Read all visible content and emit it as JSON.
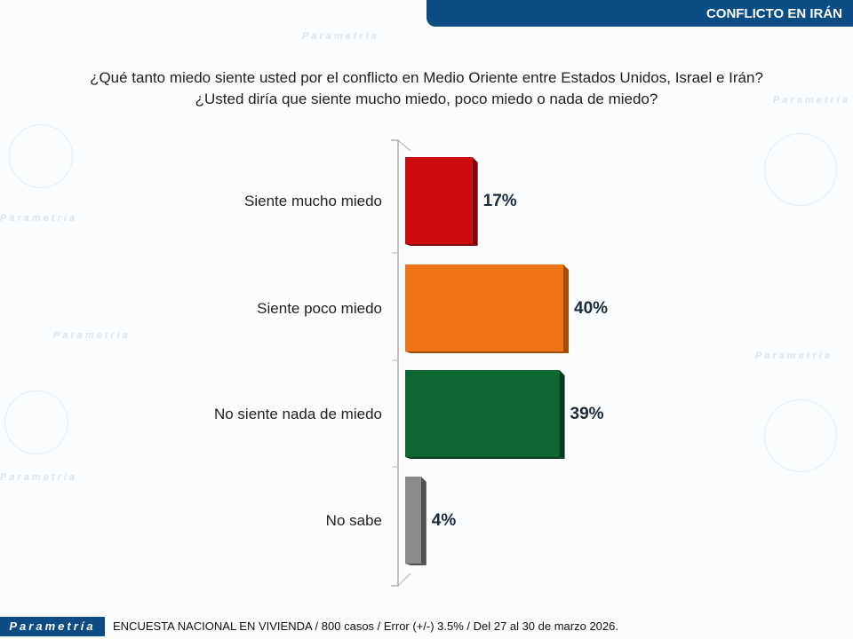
{
  "header": {
    "title": "CONFLICTO EN IRÁN"
  },
  "question": {
    "line1": "¿Qué tanto miedo siente usted por el conflicto en Medio Oriente entre Estados Unidos, Israel e Irán?",
    "line2": "¿Usted diría que siente mucho miedo, poco miedo o nada de miedo?"
  },
  "footer": {
    "logo": "Parametría",
    "note": "ENCUESTA NACIONAL EN VIVIENDA / 800 casos / Error (+/-) 3.5% / Del 27 al 30 de marzo 2026."
  },
  "chart_data": {
    "type": "bar",
    "orientation": "horizontal",
    "categories": [
      "Siente mucho miedo",
      "Siente poco miedo",
      "No siente nada de miedo",
      "No sabe"
    ],
    "values": [
      17,
      40,
      39,
      4
    ],
    "labels": [
      "17%",
      "40%",
      "39%",
      "4%"
    ],
    "colors": [
      "#cc0c0c",
      "#ee7417",
      "#0e6630",
      "#8a8a8a"
    ],
    "side_colors": [
      "#7d0505",
      "#a04c0a",
      "#063a1a",
      "#505050"
    ],
    "xlim": [
      0,
      40
    ]
  }
}
